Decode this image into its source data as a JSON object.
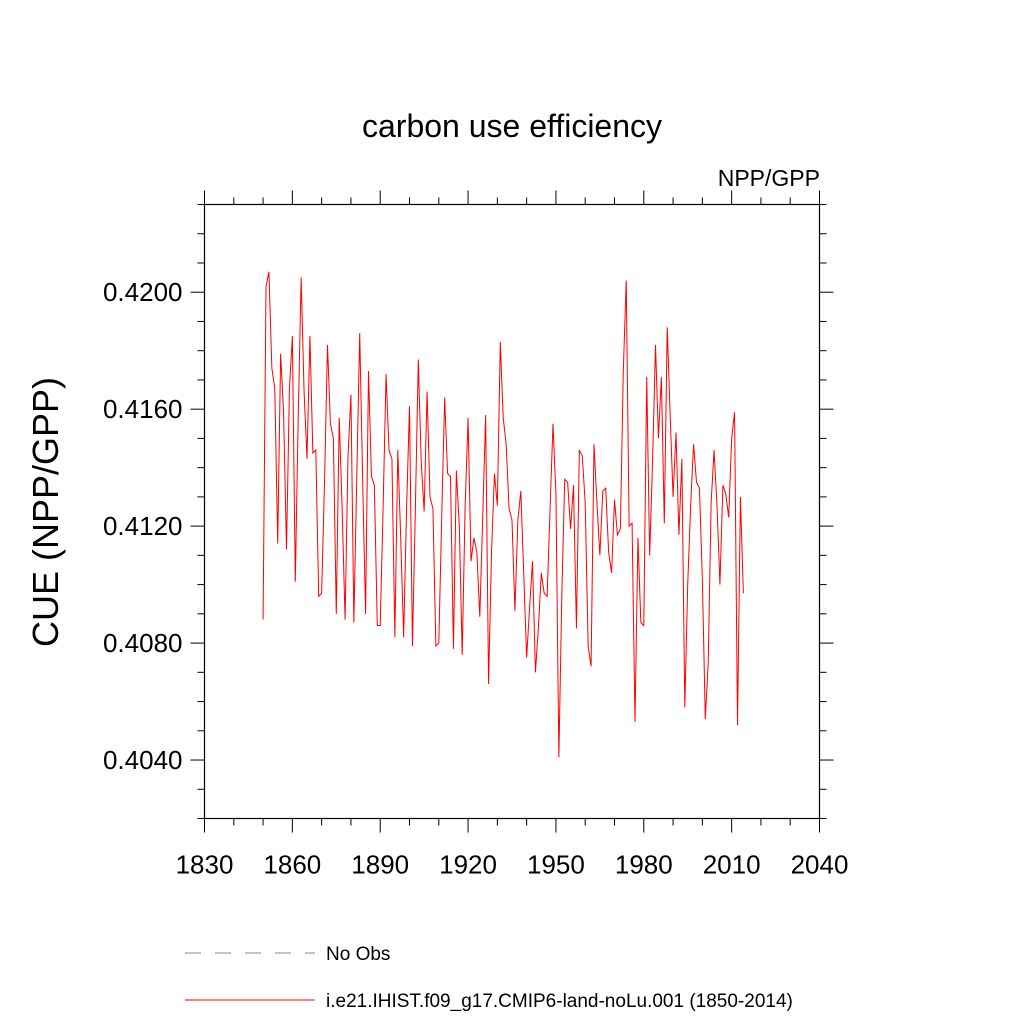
{
  "chart_data": {
    "type": "line",
    "title": "carbon use efficiency",
    "subtitle": "NPP/GPP",
    "xlabel": "",
    "ylabel": "CUE  (NPP/GPP)",
    "xlim": [
      1830,
      2040
    ],
    "ylim": [
      0.402,
      0.423
    ],
    "x_ticks": [
      "1830",
      "1860",
      "1890",
      "1920",
      "1950",
      "1980",
      "2010",
      "2040"
    ],
    "y_ticks": [
      "0.4040",
      "0.4080",
      "0.4120",
      "0.4160",
      "0.4200"
    ],
    "grid": false,
    "legend_position": "bottom",
    "series": [
      {
        "name": "No Obs",
        "style": "dashed",
        "color": "#7b7bd6",
        "x": [],
        "values": []
      },
      {
        "name": "i.e21.IHIST.f09_g17.CMIP6-land-noLu.001 (1850-2014)",
        "style": "solid",
        "color": "#ff0000",
        "x": [
          1850,
          1851,
          1852,
          1853,
          1854,
          1855,
          1856,
          1857,
          1858,
          1859,
          1860,
          1861,
          1862,
          1863,
          1864,
          1865,
          1866,
          1867,
          1868,
          1869,
          1870,
          1871,
          1872,
          1873,
          1874,
          1875,
          1876,
          1877,
          1878,
          1879,
          1880,
          1881,
          1882,
          1883,
          1884,
          1885,
          1886,
          1887,
          1888,
          1889,
          1890,
          1891,
          1892,
          1893,
          1894,
          1895,
          1896,
          1897,
          1898,
          1899,
          1900,
          1901,
          1902,
          1903,
          1904,
          1905,
          1906,
          1907,
          1908,
          1909,
          1910,
          1911,
          1912,
          1913,
          1914,
          1915,
          1916,
          1917,
          1918,
          1919,
          1920,
          1921,
          1922,
          1923,
          1924,
          1925,
          1926,
          1927,
          1928,
          1929,
          1930,
          1931,
          1932,
          1933,
          1934,
          1935,
          1936,
          1937,
          1938,
          1939,
          1940,
          1941,
          1942,
          1943,
          1944,
          1945,
          1946,
          1947,
          1948,
          1949,
          1950,
          1951,
          1952,
          1953,
          1954,
          1955,
          1956,
          1957,
          1958,
          1959,
          1960,
          1961,
          1962,
          1963,
          1964,
          1965,
          1966,
          1967,
          1968,
          1969,
          1970,
          1971,
          1972,
          1973,
          1974,
          1975,
          1976,
          1977,
          1978,
          1979,
          1980,
          1981,
          1982,
          1983,
          1984,
          1985,
          1986,
          1987,
          1988,
          1989,
          1990,
          1991,
          1992,
          1993,
          1994,
          1995,
          1996,
          1997,
          1998,
          1999,
          2000,
          2001,
          2002,
          2003,
          2004,
          2005,
          2006,
          2007,
          2008,
          2009,
          2010,
          2011,
          2012,
          2013,
          2014
        ],
        "values": [
          0.4088,
          0.4202,
          0.4207,
          0.4174,
          0.4167,
          0.4114,
          0.4179,
          0.4159,
          0.4112,
          0.4167,
          0.4185,
          0.4101,
          0.4157,
          0.4205,
          0.4166,
          0.4143,
          0.4185,
          0.4145,
          0.4146,
          0.4096,
          0.4097,
          0.4136,
          0.4182,
          0.4155,
          0.415,
          0.409,
          0.4157,
          0.4126,
          0.4088,
          0.4144,
          0.4165,
          0.4087,
          0.4137,
          0.4186,
          0.4136,
          0.409,
          0.4173,
          0.4137,
          0.4134,
          0.4086,
          0.4086,
          0.4127,
          0.4172,
          0.4146,
          0.4143,
          0.4082,
          0.4146,
          0.4116,
          0.4082,
          0.4126,
          0.4161,
          0.4079,
          0.4126,
          0.4177,
          0.4142,
          0.4125,
          0.4166,
          0.413,
          0.4126,
          0.4079,
          0.408,
          0.4123,
          0.4164,
          0.4138,
          0.4137,
          0.4078,
          0.4139,
          0.412,
          0.4076,
          0.4127,
          0.4157,
          0.4108,
          0.4116,
          0.4111,
          0.4089,
          0.4123,
          0.4158,
          0.4066,
          0.4111,
          0.4138,
          0.4127,
          0.4183,
          0.4157,
          0.4148,
          0.4126,
          0.4122,
          0.4091,
          0.4122,
          0.4132,
          0.4104,
          0.4075,
          0.4092,
          0.4108,
          0.407,
          0.4085,
          0.4104,
          0.4097,
          0.4096,
          0.4126,
          0.4155,
          0.4131,
          0.4041,
          0.4096,
          0.4136,
          0.4135,
          0.4119,
          0.4134,
          0.4085,
          0.4146,
          0.4144,
          0.4128,
          0.4079,
          0.4072,
          0.4148,
          0.4128,
          0.411,
          0.4132,
          0.4133,
          0.4111,
          0.4104,
          0.4129,
          0.4117,
          0.4119,
          0.4173,
          0.4204,
          0.412,
          0.4121,
          0.4053,
          0.4116,
          0.4087,
          0.4086,
          0.4171,
          0.411,
          0.4142,
          0.4182,
          0.415,
          0.4171,
          0.4121,
          0.4188,
          0.4158,
          0.413,
          0.4152,
          0.4117,
          0.4143,
          0.4058,
          0.41,
          0.4127,
          0.4148,
          0.4135,
          0.4133,
          0.4102,
          0.4054,
          0.4073,
          0.4128,
          0.4146,
          0.4127,
          0.41,
          0.4134,
          0.4131,
          0.4123,
          0.415,
          0.4159,
          0.4052,
          0.413,
          0.4097
        ]
      }
    ]
  }
}
